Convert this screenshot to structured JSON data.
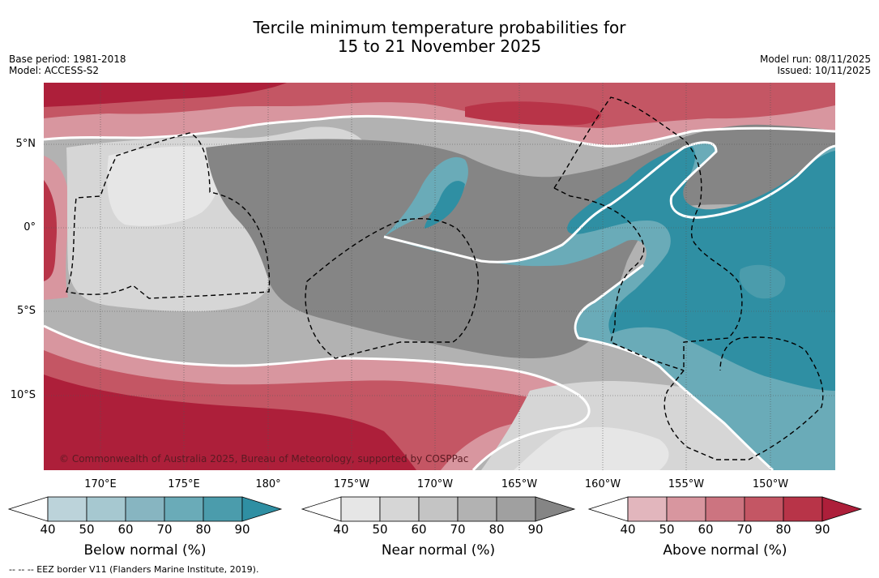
{
  "header": {
    "title_line1": "Tercile minimum temperature probabilities for",
    "title_line2": "15 to 21 November 2025",
    "base_period": "Base period: 1981-2018",
    "model": "Model: ACCESS-S2",
    "model_run": "Model run: 08/11/2025",
    "issued": "Issued: 10/11/2025"
  },
  "map": {
    "latitude_labels": [
      "5°N",
      "0°",
      "5°S",
      "10°S"
    ],
    "longitude_labels": [
      "170°E",
      "175°E",
      "180°",
      "175°W",
      "170°W",
      "165°W",
      "160°W",
      "155°W",
      "150°W"
    ],
    "copyright": "© Commonwealth of Australia 2025, Bureau of Meteorology, supported by COSPPac"
  },
  "legends": [
    {
      "title": "Below normal (%)",
      "ticks": [
        "40",
        "50",
        "60",
        "70",
        "80",
        "90"
      ],
      "colors": [
        "#ffffff",
        "#bcd3da",
        "#a6c8d0",
        "#87b5c1",
        "#6aabb8",
        "#4b9cac",
        "#2f8fa3"
      ]
    },
    {
      "title": "Near normal (%)",
      "ticks": [
        "40",
        "50",
        "60",
        "70",
        "80",
        "90"
      ],
      "colors": [
        "#ffffff",
        "#e6e6e6",
        "#d6d6d6",
        "#c4c4c4",
        "#b2b2b2",
        "#a0a0a0",
        "#858585"
      ]
    },
    {
      "title": "Above normal (%)",
      "ticks": [
        "40",
        "50",
        "60",
        "70",
        "80",
        "90"
      ],
      "colors": [
        "#ffffff",
        "#e2b6bd",
        "#d8969f",
        "#cc7480",
        "#c45664",
        "#b83448",
        "#ad1f3a"
      ]
    }
  ],
  "footnote": "--  --  -- EEZ border V11 (Flanders Marine Institute, 2019)."
}
